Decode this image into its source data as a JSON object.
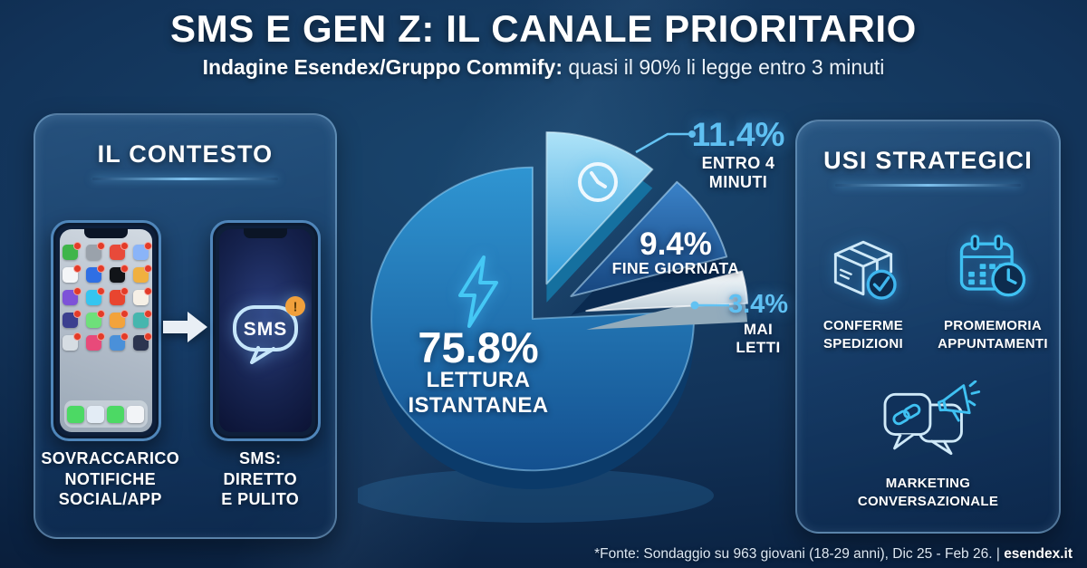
{
  "header": {
    "title": "SMS E GEN Z: IL CANALE PRIORITARIO",
    "subtitle_bold": "Indagine Esendex/Gruppo Commify:",
    "subtitle_rest": " quasi il 90% li legge entro 3 minuti"
  },
  "left_panel": {
    "title": "IL CONTESTO",
    "before_label": "SOVRACCARICO\nNOTIFICHE\nSOCIAL/APP",
    "after_label": "SMS:\nDIRETTO\nE PULITO",
    "sms_bubble_text": "SMS",
    "sms_badge": "!",
    "app_badge_color": "#e33b28",
    "app_colors": [
      "#3fb54a",
      "#9aa2ab",
      "#e84a3a",
      "#8ab4f8",
      "#f4f6f8",
      "#2f6fe4",
      "#111418",
      "#f0b03f",
      "#7d52d8",
      "#35c5f0",
      "#e8452f",
      "#f6f0e6",
      "#3b3f8f",
      "#6ee07a",
      "#f2a33c",
      "#45b6ae",
      "#d6dde3",
      "#e84a7a",
      "#4a90d9",
      "#2c3550"
    ],
    "dock_colors": [
      "#4cd964",
      "#e3ecf5",
      "#4cd964",
      "#f2f4f7"
    ]
  },
  "chart_data": {
    "type": "pie",
    "title": "",
    "unit": "%",
    "legend_position": "none",
    "slices": [
      {
        "label": "ENTRO 4 MINUTI",
        "value": 11.4,
        "pct_label": "11.4%",
        "color_top": "#aee3f8",
        "color_bottom": "#2e9ad8",
        "side_color": "#15709f",
        "rim": "rgba(220,245,255,0.55)",
        "explode": 44
      },
      {
        "label": "FINE GIORNATA",
        "value": 9.4,
        "pct_label": "9.4%",
        "color_top": "#3a82c8",
        "color_bottom": "#16457e",
        "side_color": "#0a2a50",
        "rim": "rgba(190,230,255,0.55)",
        "explode": 50
      },
      {
        "label": "MAI LETTI",
        "value": 3.4,
        "pct_label": "3.4%",
        "color_top": "#f6f9fb",
        "color_bottom": "#c2d1db",
        "side_color": "#93abbb",
        "rim": "rgba(255,255,255,0.7)",
        "explode": 60
      },
      {
        "label": "LETTURA ISTANTANEA",
        "value": 75.8,
        "pct_label": "75.8%",
        "color_top": "#2f95d2",
        "color_bottom": "#14508f",
        "side_color": "#0b3a69",
        "rim": "rgba(160,220,255,0.5)",
        "explode": 0
      }
    ]
  },
  "right_panel": {
    "title": "USI STRATEGICI",
    "items": [
      {
        "label": "CONFERME\nSPEDIZIONI",
        "icon": "package-check-icon"
      },
      {
        "label": "PROMEMORIA\nAPPUNTAMENTI",
        "icon": "calendar-clock-icon"
      },
      {
        "label": "MARKETING\nCONVERSAZIONALE",
        "icon": "chat-megaphone-icon"
      }
    ]
  },
  "footer": {
    "source": "*Fonte: Sondaggio su 963 giovani (18-29 anni), Dic 25 - Feb 26. | ",
    "brand": "esendex.it"
  },
  "colors": {
    "accent_cyan": "#3fc1f2",
    "callout_blue": "#5fc0f2",
    "connector_blue": "#63c2f2",
    "bg_dark": "#081830",
    "bg_mid": "#123359"
  }
}
